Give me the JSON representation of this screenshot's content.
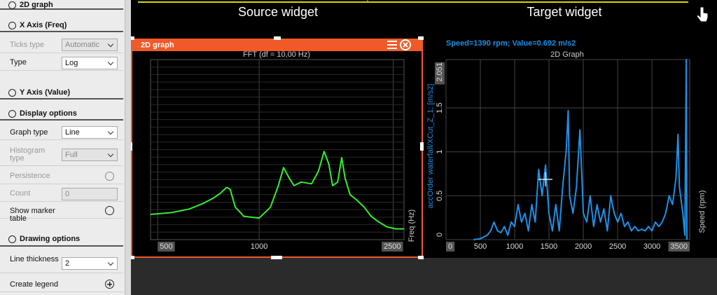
{
  "panel": {
    "rows": [
      {
        "label": "2D graph",
        "kind": "section"
      },
      {
        "label": "X Axis (Freq)",
        "kind": "section"
      },
      {
        "label": "Ticks type",
        "kind": "select",
        "value": "Automatic",
        "disabled": true
      },
      {
        "label": "Type",
        "kind": "select",
        "value": "Log",
        "disabled": false
      },
      {
        "label": "Y Axis (Value)",
        "kind": "section"
      },
      {
        "label": "Display options",
        "kind": "section"
      },
      {
        "label": "Graph type",
        "kind": "select",
        "value": "Line",
        "disabled": false
      },
      {
        "label": "Histogram type",
        "kind": "select",
        "value": "Full",
        "disabled": true
      },
      {
        "label": "Persistence",
        "kind": "radio",
        "disabled": true
      },
      {
        "label": "Count",
        "kind": "input",
        "value": "0",
        "disabled": true
      },
      {
        "label": "Show marker table",
        "kind": "radio",
        "disabled": false
      },
      {
        "label": "Drawing options",
        "kind": "section"
      },
      {
        "label": "Line thickness",
        "kind": "select",
        "value": "2",
        "disabled": false
      },
      {
        "label": "Create legend",
        "kind": "add",
        "disabled": false
      }
    ]
  },
  "header": {
    "source": "Source widget",
    "target": "Target widget"
  },
  "chart_data": [
    {
      "type": "line",
      "window_title": "2D graph",
      "title": "FFT (df = 10,00 Hz)",
      "x_label": "Freq (Hz)",
      "xscale": "log",
      "xlim": [
        476,
        2692
      ],
      "xticks": [
        500,
        1000,
        2500
      ],
      "ylim": [
        0,
        1
      ],
      "grid": true,
      "color": "#33ee33",
      "x": [
        476,
        550,
        620,
        680,
        730,
        770,
        800,
        820,
        850,
        900,
        1000,
        1080,
        1140,
        1182,
        1230,
        1270,
        1332,
        1431,
        1500,
        1559,
        1610,
        1652,
        1710,
        1758,
        1800,
        1862,
        1950,
        2051,
        2150,
        2257,
        2400,
        2550,
        2692
      ],
      "values": [
        0.14,
        0.15,
        0.17,
        0.2,
        0.23,
        0.26,
        0.29,
        0.28,
        0.18,
        0.13,
        0.12,
        0.18,
        0.3,
        0.4,
        0.34,
        0.3,
        0.32,
        0.31,
        0.38,
        0.49,
        0.42,
        0.3,
        0.32,
        0.455,
        0.34,
        0.25,
        0.22,
        0.18,
        0.13,
        0.1,
        0.07,
        0.06,
        0.06
      ]
    },
    {
      "type": "line",
      "title": "2D Graph",
      "subtitle": "Speed=1390 rpm; Value=0.692 m/s2",
      "y_label": "accOrder waterfall/XCut_Z_1; [m/s2]",
      "right_label": "Speed (rpm)",
      "xscale": "linear",
      "xlim": [
        0,
        3550
      ],
      "xticks": [
        0,
        500,
        1000,
        1500,
        2000,
        2500,
        3000,
        3500
      ],
      "ylim": [
        0,
        2.051
      ],
      "yticks": [
        0,
        0.5,
        1,
        1.5,
        2.051
      ],
      "grid": true,
      "color": "#1e90e6",
      "x": [
        400,
        500,
        600,
        650,
        700,
        750,
        800,
        850,
        900,
        950,
        1000,
        1050,
        1100,
        1150,
        1200,
        1250,
        1300,
        1350,
        1400,
        1450,
        1500,
        1550,
        1600,
        1650,
        1700,
        1750,
        1780,
        1800,
        1850,
        1900,
        1950,
        1980,
        2000,
        2050,
        2100,
        2150,
        2200,
        2250,
        2300,
        2350,
        2400,
        2450,
        2500,
        2550,
        2600,
        2650,
        2700,
        2750,
        2800,
        2850,
        2900,
        2950,
        3000,
        3050,
        3100,
        3150,
        3200,
        3250,
        3300,
        3350,
        3380,
        3400,
        3450,
        3480,
        3500,
        3510
      ],
      "values": [
        0,
        0.01,
        0.05,
        0.1,
        0.2,
        0.1,
        0.08,
        0.15,
        0.05,
        0.2,
        0.15,
        0.4,
        0.2,
        0.3,
        0.1,
        0.4,
        0.2,
        0.8,
        0.5,
        0.85,
        0.3,
        0.1,
        0.4,
        0.1,
        0.6,
        1.0,
        1.47,
        0.5,
        0.3,
        0.6,
        1.25,
        0.7,
        0.3,
        0.2,
        0.5,
        0.15,
        0.4,
        0.2,
        0.35,
        0.1,
        0.5,
        0.3,
        0.2,
        0.3,
        0.15,
        0.2,
        0.1,
        0.15,
        0.1,
        0.12,
        0.1,
        0.15,
        0.1,
        0.2,
        0.15,
        0.2,
        0.3,
        0.5,
        0.4,
        0.7,
        1.2,
        0.6,
        0.3,
        0.05,
        2.051,
        0
      ]
    }
  ]
}
